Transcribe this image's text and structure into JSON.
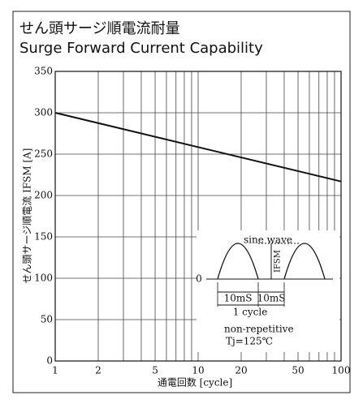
{
  "chart_data": {
    "type": "line",
    "title": "せん頭サージ順電流耐量",
    "subtitle": "Surge Forward Current Capability",
    "x_label": "通電回数 [cycle]",
    "y_label": "せん頭サージ順電流 IFSM [A]",
    "x": [
      1,
      100
    ],
    "series": [
      {
        "name": "IFSM",
        "color": "#111111",
        "values": [
          300,
          217
        ]
      }
    ],
    "xlim": [
      1,
      100
    ],
    "xticks": [
      1,
      2,
      5,
      10,
      20,
      50,
      100
    ],
    "xminor": [
      3,
      4,
      6,
      7,
      8,
      9,
      30,
      40,
      60,
      70,
      80,
      90
    ],
    "ylim": [
      0,
      350
    ],
    "yticks": [
      0,
      50,
      100,
      150,
      200,
      250,
      300,
      350
    ],
    "log_x": true,
    "grid": true,
    "annotations": {
      "wave": "sine wave",
      "ifsm": "IFSM",
      "zero": "0",
      "t1": "10mS",
      "t2": "10mS",
      "cycle": "1 cycle",
      "rep": "non-repetitive",
      "tj": "Tj=125℃"
    }
  }
}
